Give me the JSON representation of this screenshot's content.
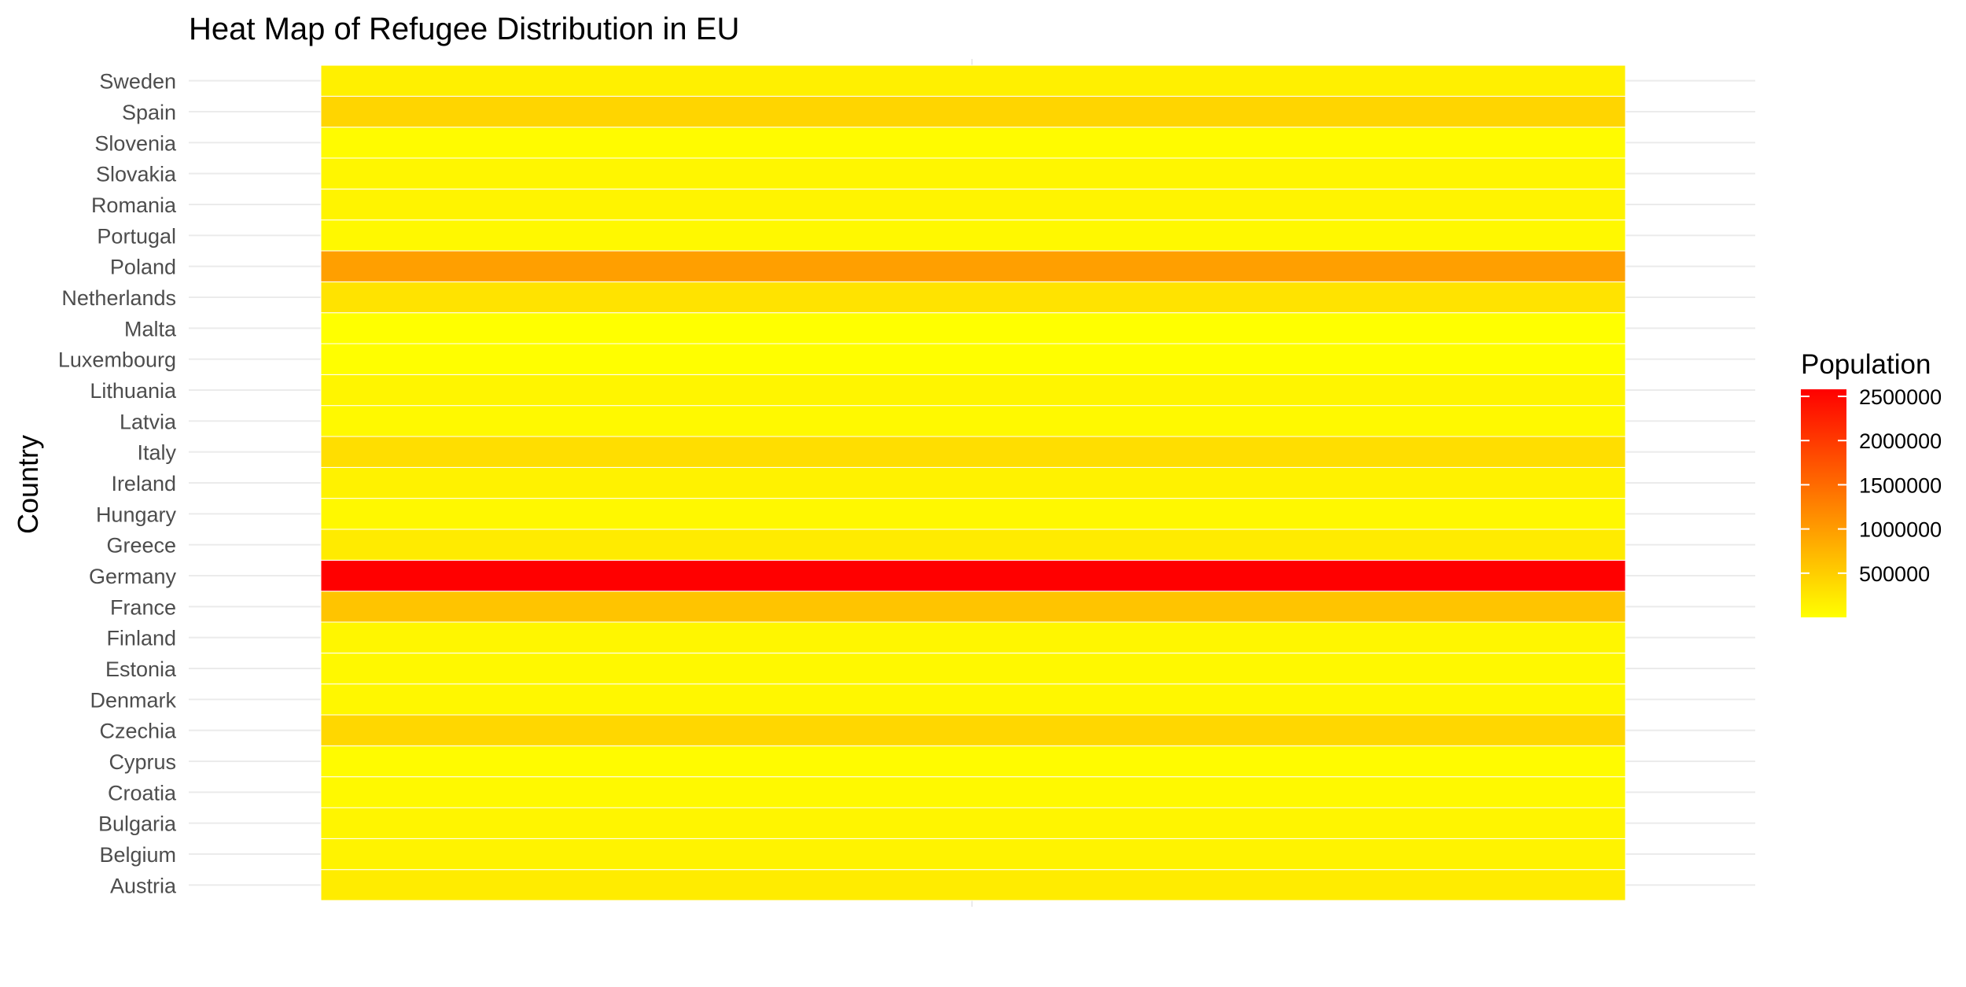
{
  "chart_data": {
    "type": "heatmap",
    "title": "Heat Map of Refugee Distribution in EU",
    "xlabel": "",
    "ylabel": "Country",
    "legend": {
      "title": "Population",
      "position": "right",
      "ticks": [
        500000,
        1000000,
        1500000,
        2000000,
        2500000
      ],
      "tick_labels": [
        "500000",
        "1000000",
        "1500000",
        "2000000",
        "2500000"
      ],
      "range": [
        100,
        2580000
      ],
      "colors": {
        "low": "#FFFF00",
        "high": "#FF0000"
      }
    },
    "grid": true,
    "categories": [
      "Austria",
      "Belgium",
      "Bulgaria",
      "Croatia",
      "Cyprus",
      "Czechia",
      "Denmark",
      "Estonia",
      "Finland",
      "France",
      "Germany",
      "Greece",
      "Hungary",
      "Ireland",
      "Italy",
      "Latvia",
      "Lithuania",
      "Luxembourg",
      "Malta",
      "Netherlands",
      "Poland",
      "Portugal",
      "Romania",
      "Slovakia",
      "Slovenia",
      "Spain",
      "Sweden"
    ],
    "values": [
      190000,
      120000,
      100000,
      60000,
      40000,
      400000,
      80000,
      70000,
      90000,
      600000,
      2580000,
      200000,
      70000,
      130000,
      330000,
      60000,
      100000,
      10000,
      5000,
      280000,
      970000,
      70000,
      110000,
      90000,
      40000,
      420000,
      150000
    ]
  }
}
